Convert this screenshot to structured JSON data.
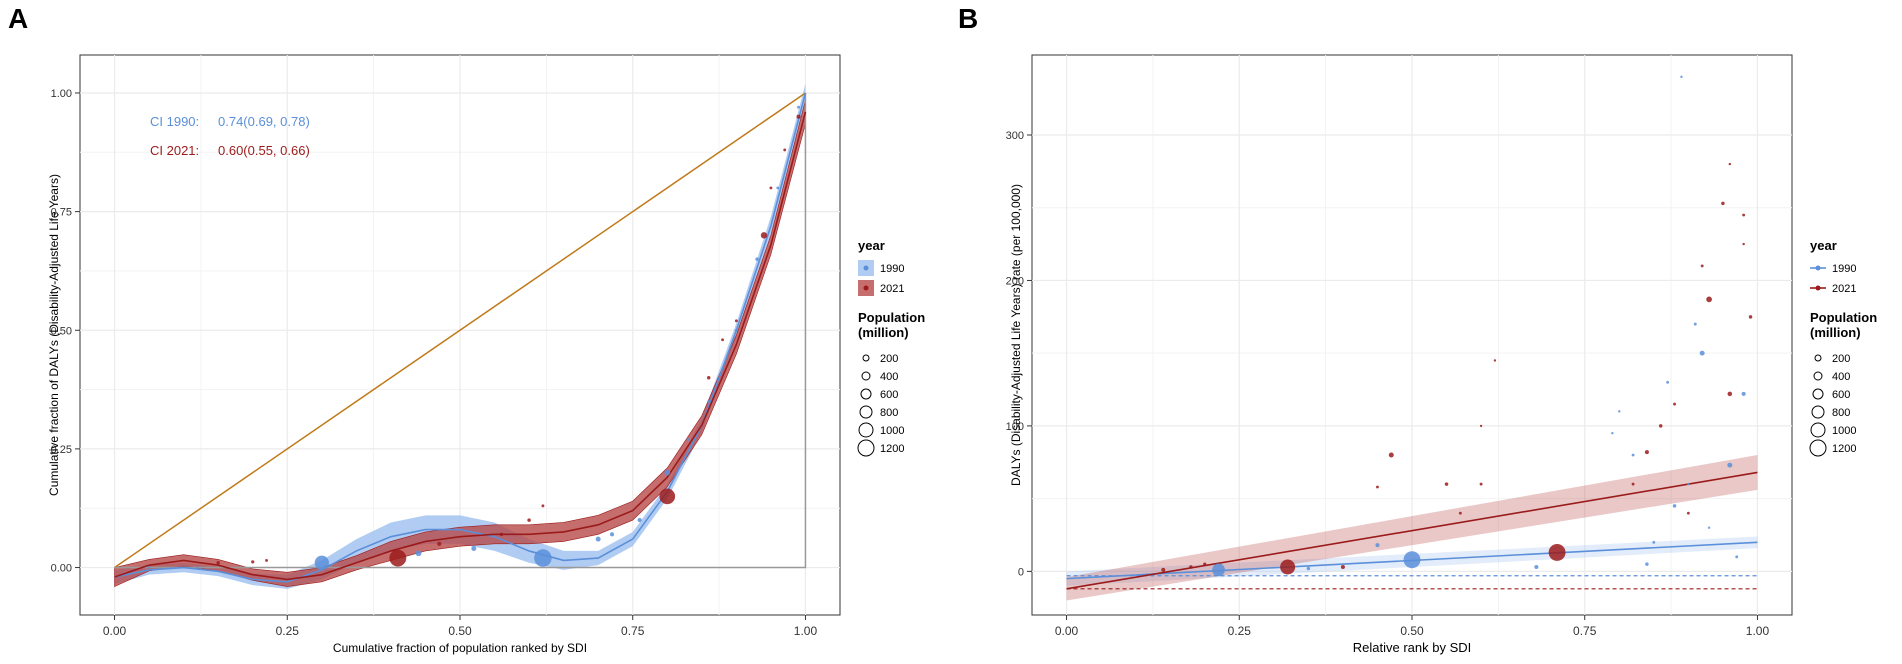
{
  "colors": {
    "c1990": "#5b8fd9",
    "c1990_band": "#9ebff0",
    "c2021": "#9b1b1b",
    "c2021_band": "#b84a4a",
    "diagonal": "#c07a1a",
    "grid": "#ebebeb",
    "axis": "#333333"
  },
  "chart_data": [
    {
      "type": "scatter",
      "id": "A",
      "panel_label": "A",
      "title": "",
      "xlabel": "Cumulative fraction of population ranked by SDI",
      "ylabel": "Cumulative fraction of DALYs (Disability-Adjusted Life Years)",
      "xlim": [
        -0.05,
        1.05
      ],
      "ylim": [
        -0.1,
        1.08
      ],
      "x_ticks": [
        0,
        0.25,
        0.5,
        0.75,
        1
      ],
      "x_tick_labels": [
        "0.00",
        "0.25",
        "0.50",
        "0.75",
        "1.00"
      ],
      "y_ticks": [
        0,
        0.25,
        0.5,
        0.75,
        1
      ],
      "y_tick_labels": [
        "0.00",
        "0.25",
        "0.50",
        "0.75",
        "1.00"
      ],
      "annotations": [
        {
          "label": "CI 1990:",
          "value": "0.74(0.69, 0.78)",
          "series": "1990"
        },
        {
          "label": "CI 2021:",
          "value": "0.60(0.55, 0.66)",
          "series": "2021"
        }
      ],
      "legend": {
        "position": "right",
        "year_title": "year",
        "year_entries": [
          "1990",
          "2021"
        ],
        "size_title": "Population\n(million)",
        "size_entries": [
          "200",
          "400",
          "600",
          "800",
          "1000",
          "1200"
        ]
      },
      "series": [
        {
          "name": "1990",
          "fit": {
            "x": [
              0,
              0.05,
              0.1,
              0.15,
              0.2,
              0.25,
              0.3,
              0.35,
              0.4,
              0.45,
              0.5,
              0.55,
              0.6,
              0.65,
              0.7,
              0.75,
              0.8,
              0.85,
              0.9,
              0.95,
              1.0
            ],
            "y": [
              -0.02,
              -0.005,
              0.0,
              -0.008,
              -0.025,
              -0.03,
              -0.005,
              0.035,
              0.065,
              0.08,
              0.08,
              0.065,
              0.035,
              0.015,
              0.02,
              0.06,
              0.16,
              0.3,
              0.5,
              0.72,
              1.0
            ],
            "band": [
              0.015,
              0.01,
              0.01,
              0.01,
              0.012,
              0.015,
              0.02,
              0.025,
              0.03,
              0.03,
              0.03,
              0.03,
              0.025,
              0.02,
              0.015,
              0.015,
              0.015,
              0.015,
              0.015,
              0.02,
              0.02
            ]
          },
          "points": [
            {
              "x": 0.3,
              "y": 0.01,
              "size": 500
            },
            {
              "x": 0.62,
              "y": 0.02,
              "size": 750
            },
            {
              "x": 0.44,
              "y": 0.03,
              "size": 80
            },
            {
              "x": 0.52,
              "y": 0.04,
              "size": 60
            },
            {
              "x": 0.7,
              "y": 0.06,
              "size": 60
            },
            {
              "x": 0.72,
              "y": 0.07,
              "size": 40
            },
            {
              "x": 0.76,
              "y": 0.1,
              "size": 40
            },
            {
              "x": 0.8,
              "y": 0.2,
              "size": 80
            },
            {
              "x": 0.83,
              "y": 0.27,
              "size": 20
            },
            {
              "x": 0.86,
              "y": 0.35,
              "size": 20
            },
            {
              "x": 0.9,
              "y": 0.5,
              "size": 20
            },
            {
              "x": 0.93,
              "y": 0.65,
              "size": 30
            },
            {
              "x": 0.96,
              "y": 0.8,
              "size": 20
            },
            {
              "x": 0.99,
              "y": 0.97,
              "size": 20
            },
            {
              "x": 0.05,
              "y": 0.0,
              "size": 10
            },
            {
              "x": 0.12,
              "y": 0.0,
              "size": 10
            }
          ]
        },
        {
          "name": "2021",
          "fit": {
            "x": [
              0,
              0.05,
              0.1,
              0.15,
              0.2,
              0.25,
              0.3,
              0.35,
              0.4,
              0.45,
              0.5,
              0.55,
              0.6,
              0.65,
              0.7,
              0.75,
              0.8,
              0.85,
              0.9,
              0.95,
              1.0
            ],
            "y": [
              -0.02,
              0.005,
              0.015,
              0.005,
              -0.015,
              -0.025,
              -0.015,
              0.01,
              0.035,
              0.055,
              0.065,
              0.07,
              0.07,
              0.075,
              0.09,
              0.12,
              0.19,
              0.3,
              0.47,
              0.68,
              0.96
            ],
            "band": [
              0.02,
              0.012,
              0.012,
              0.012,
              0.012,
              0.015,
              0.015,
              0.015,
              0.02,
              0.02,
              0.02,
              0.02,
              0.02,
              0.02,
              0.02,
              0.02,
              0.02,
              0.02,
              0.02,
              0.02,
              0.025
            ]
          },
          "points": [
            {
              "x": 0.41,
              "y": 0.02,
              "size": 700
            },
            {
              "x": 0.8,
              "y": 0.15,
              "size": 600
            },
            {
              "x": 0.94,
              "y": 0.7,
              "size": 100
            },
            {
              "x": 0.99,
              "y": 0.95,
              "size": 40
            },
            {
              "x": 0.15,
              "y": 0.01,
              "size": 30
            },
            {
              "x": 0.2,
              "y": 0.012,
              "size": 25
            },
            {
              "x": 0.22,
              "y": 0.015,
              "size": 20
            },
            {
              "x": 0.47,
              "y": 0.05,
              "size": 40
            },
            {
              "x": 0.56,
              "y": 0.07,
              "size": 30
            },
            {
              "x": 0.6,
              "y": 0.1,
              "size": 30
            },
            {
              "x": 0.62,
              "y": 0.13,
              "size": 20
            },
            {
              "x": 0.86,
              "y": 0.4,
              "size": 30
            },
            {
              "x": 0.88,
              "y": 0.48,
              "size": 20
            },
            {
              "x": 0.9,
              "y": 0.52,
              "size": 20
            },
            {
              "x": 0.95,
              "y": 0.8,
              "size": 20
            },
            {
              "x": 0.97,
              "y": 0.88,
              "size": 20
            }
          ]
        }
      ]
    },
    {
      "type": "scatter",
      "id": "B",
      "panel_label": "B",
      "title": "",
      "xlabel": "Relative rank by SDI",
      "ylabel": "DALYs (Disability-Adjusted Life Years) rate (per 100,000)",
      "xlim": [
        -0.05,
        1.05
      ],
      "ylim": [
        -30,
        355
      ],
      "x_ticks": [
        0,
        0.25,
        0.5,
        0.75,
        1
      ],
      "x_tick_labels": [
        "0.00",
        "0.25",
        "0.50",
        "0.75",
        "1.00"
      ],
      "y_ticks": [
        0,
        100,
        200,
        300
      ],
      "y_tick_labels": [
        "0",
        "100",
        "200",
        "300"
      ],
      "legend": {
        "position": "right",
        "year_title": "year",
        "year_entries": [
          "1990",
          "2021"
        ],
        "size_title": "Population\n(million)",
        "size_entries": [
          "200",
          "400",
          "600",
          "800",
          "1000",
          "1200"
        ]
      },
      "series": [
        {
          "name": "1990",
          "fit": {
            "x": [
              0,
              1
            ],
            "y": [
              -5,
              20
            ],
            "band": [
              5,
              4
            ]
          },
          "hline": -3,
          "points": [
            {
              "x": 0.22,
              "y": 1,
              "size": 400
            },
            {
              "x": 0.5,
              "y": 8,
              "size": 700
            },
            {
              "x": 0.35,
              "y": 2,
              "size": 30
            },
            {
              "x": 0.45,
              "y": 18,
              "size": 40
            },
            {
              "x": 0.68,
              "y": 3,
              "size": 40
            },
            {
              "x": 0.79,
              "y": 95,
              "size": 15
            },
            {
              "x": 0.8,
              "y": 110,
              "size": 10
            },
            {
              "x": 0.82,
              "y": 80,
              "size": 20
            },
            {
              "x": 0.84,
              "y": 5,
              "size": 30
            },
            {
              "x": 0.85,
              "y": 20,
              "size": 20
            },
            {
              "x": 0.87,
              "y": 130,
              "size": 20
            },
            {
              "x": 0.88,
              "y": 45,
              "size": 30
            },
            {
              "x": 0.89,
              "y": 340,
              "size": 10
            },
            {
              "x": 0.91,
              "y": 170,
              "size": 20
            },
            {
              "x": 0.92,
              "y": 150,
              "size": 60
            },
            {
              "x": 0.96,
              "y": 73,
              "size": 60
            },
            {
              "x": 0.98,
              "y": 122,
              "size": 40
            },
            {
              "x": 0.97,
              "y": 10,
              "size": 20
            },
            {
              "x": 0.93,
              "y": 30,
              "size": 10
            },
            {
              "x": 0.9,
              "y": 60,
              "size": 10
            }
          ]
        },
        {
          "name": "2021",
          "fit": {
            "x": [
              0,
              1
            ],
            "y": [
              -12,
              68
            ],
            "band": [
              8,
              12
            ]
          },
          "hline": -12,
          "points": [
            {
              "x": 0.32,
              "y": 3,
              "size": 550
            },
            {
              "x": 0.71,
              "y": 13,
              "size": 700
            },
            {
              "x": 0.14,
              "y": 1,
              "size": 40
            },
            {
              "x": 0.18,
              "y": 3,
              "size": 30
            },
            {
              "x": 0.2,
              "y": 5,
              "size": 25
            },
            {
              "x": 0.4,
              "y": 3,
              "size": 40
            },
            {
              "x": 0.47,
              "y": 80,
              "size": 60
            },
            {
              "x": 0.45,
              "y": 58,
              "size": 20
            },
            {
              "x": 0.55,
              "y": 60,
              "size": 30
            },
            {
              "x": 0.57,
              "y": 40,
              "size": 20
            },
            {
              "x": 0.6,
              "y": 60,
              "size": 20
            },
            {
              "x": 0.6,
              "y": 100,
              "size": 10
            },
            {
              "x": 0.62,
              "y": 145,
              "size": 10
            },
            {
              "x": 0.84,
              "y": 82,
              "size": 40
            },
            {
              "x": 0.86,
              "y": 100,
              "size": 30
            },
            {
              "x": 0.88,
              "y": 115,
              "size": 20
            },
            {
              "x": 0.93,
              "y": 187,
              "size": 80
            },
            {
              "x": 0.95,
              "y": 253,
              "size": 30
            },
            {
              "x": 0.96,
              "y": 122,
              "size": 50
            },
            {
              "x": 0.98,
              "y": 245,
              "size": 20
            },
            {
              "x": 0.99,
              "y": 175,
              "size": 30
            },
            {
              "x": 0.96,
              "y": 280,
              "size": 10
            },
            {
              "x": 0.92,
              "y": 210,
              "size": 20
            },
            {
              "x": 0.98,
              "y": 225,
              "size": 10
            },
            {
              "x": 0.82,
              "y": 60,
              "size": 20
            },
            {
              "x": 0.9,
              "y": 40,
              "size": 20
            }
          ]
        }
      ]
    }
  ]
}
